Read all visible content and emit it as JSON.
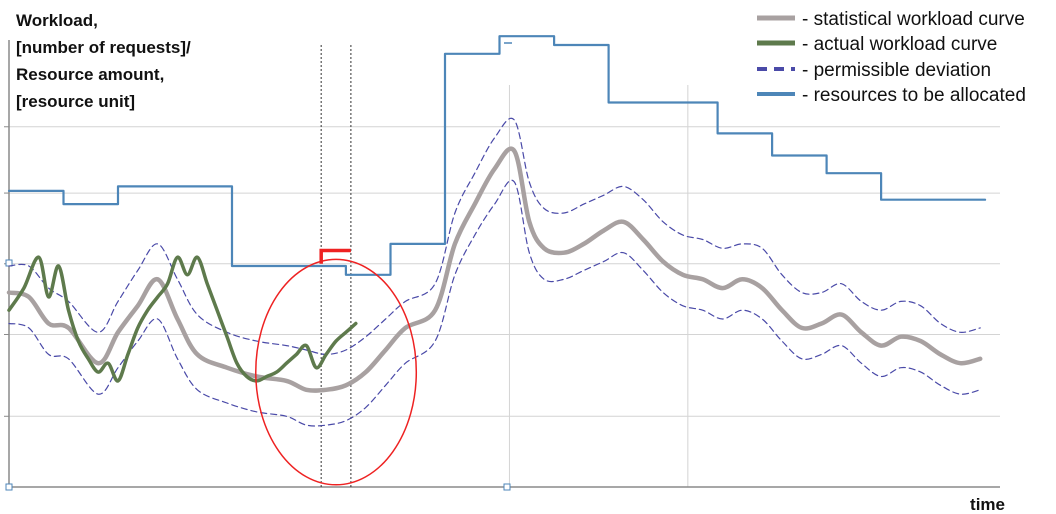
{
  "chart_data": {
    "type": "line",
    "ylabel_lines": [
      "Workload,",
      "[number of requests]/",
      "Resource amount,",
      "[resource unit]"
    ],
    "xlabel": "time",
    "legend": [
      {
        "text": "- statistical workload curve",
        "color": "#a8a1a1",
        "style": "solid-thick"
      },
      {
        "text": "- actual workload curve",
        "color": "#5e7a4c",
        "style": "solid-thick"
      },
      {
        "text": "- permissible deviation",
        "color": "#4a4aa8",
        "style": "dashed"
      },
      {
        "text": "- resources to be allocated",
        "color": "#4d86b8",
        "style": "solid"
      }
    ],
    "legend_position": "top-right",
    "x_range": [
      0,
      100
    ],
    "y_range": [
      0,
      100
    ],
    "grid": {
      "horizontal": [
        16,
        34.5,
        50.5,
        66.5,
        81.5
      ],
      "vertical": [
        50.5,
        68.5
      ]
    },
    "series": [
      {
        "key": "statistical",
        "color": "#a8a1a1",
        "x": [
          0,
          2,
          4,
          6,
          9,
          11,
          13,
          15,
          17,
          19,
          22,
          25,
          28,
          30,
          32,
          34,
          36,
          38,
          40,
          43,
          45,
          47,
          49,
          51,
          52.5,
          54,
          56,
          58,
          60,
          62,
          64,
          66,
          68,
          70,
          72,
          74,
          76,
          78,
          80,
          82,
          84,
          86,
          88,
          90,
          92,
          94,
          96,
          98
        ],
        "y": [
          44,
          43,
          37,
          36,
          28,
          35,
          41,
          47,
          38,
          30,
          27,
          25,
          24,
          22,
          22,
          23,
          26,
          31,
          36,
          40,
          55,
          64,
          72,
          76,
          60,
          54,
          53,
          55,
          58,
          60,
          56,
          51,
          48,
          47,
          45,
          47,
          45,
          40,
          36,
          37,
          39,
          35,
          32,
          34,
          33,
          30,
          28,
          29
        ]
      },
      {
        "key": "actual",
        "color": "#5e7a4c",
        "x": [
          0,
          1.5,
          3,
          4,
          5,
          6,
          7,
          8,
          9,
          10,
          11,
          12,
          13,
          14,
          15,
          16,
          17,
          18,
          19,
          20,
          21,
          22,
          23,
          24,
          25,
          26,
          27,
          28,
          29,
          30,
          31,
          32,
          33,
          34,
          35
        ],
        "y": [
          40,
          45,
          52,
          43,
          50,
          40,
          33,
          29,
          26,
          28,
          24,
          30,
          36,
          40,
          43,
          46,
          52,
          48,
          52,
          46,
          40,
          34,
          28,
          25,
          24,
          25,
          26,
          28,
          30,
          32,
          27,
          30,
          33,
          35,
          37
        ]
      },
      {
        "key": "deviation-upper",
        "color": "#4a4aa8",
        "x": [
          0,
          2,
          4,
          6,
          9,
          11,
          13,
          15,
          17,
          19,
          22,
          25,
          28,
          30,
          32,
          34,
          36,
          38,
          40,
          43,
          45,
          47,
          49,
          51,
          52.5,
          54,
          56,
          58,
          60,
          62,
          64,
          66,
          68,
          70,
          72,
          74,
          76,
          78,
          80,
          82,
          84,
          86,
          88,
          90,
          92,
          94,
          96,
          98
        ],
        "y": [
          50,
          50,
          45,
          42,
          35,
          42,
          49,
          55,
          47,
          39,
          35,
          33,
          32,
          31,
          30,
          31,
          34,
          38,
          42,
          46,
          62,
          71,
          79,
          83,
          69,
          63,
          62,
          64,
          66,
          68,
          65,
          60,
          57,
          56,
          54,
          55,
          54,
          48,
          44,
          44,
          46,
          42,
          40,
          42,
          41,
          37,
          35,
          36
        ]
      },
      {
        "key": "deviation-lower",
        "color": "#4a4aa8",
        "x": [
          0,
          2,
          4,
          6,
          9,
          11,
          13,
          15,
          17,
          19,
          22,
          25,
          28,
          30,
          32,
          34,
          36,
          38,
          40,
          43,
          45,
          47,
          49,
          51,
          52.5,
          54,
          56,
          58,
          60,
          62,
          64,
          66,
          68,
          70,
          72,
          74,
          76,
          78,
          80,
          82,
          84,
          86,
          88,
          90,
          92,
          94,
          96,
          98
        ],
        "y": [
          37,
          36,
          30,
          29,
          21,
          27,
          33,
          38,
          29,
          22,
          19,
          17,
          16,
          14,
          14,
          15,
          18,
          23,
          28,
          33,
          48,
          57,
          64,
          69,
          53,
          47,
          47,
          49,
          51,
          53,
          49,
          44,
          41,
          40,
          38,
          40,
          38,
          33,
          29,
          30,
          32,
          28,
          25,
          27,
          26,
          23,
          21,
          22
        ]
      },
      {
        "key": "resources",
        "color": "#4d86b8",
        "step": true,
        "x": [
          0,
          5.5,
          11,
          22.5,
          34,
          38.5,
          44,
          49.5,
          55,
          60.5,
          71.5,
          77,
          82.5,
          88,
          98.5
        ],
        "y": [
          67,
          64,
          68,
          50,
          48,
          55,
          98,
          102,
          100,
          87,
          80,
          75,
          71,
          65,
          65
        ]
      }
    ],
    "annotations": {
      "dotted_vertical_x": [
        31.5,
        34.5
      ],
      "highlight_step": {
        "color": "#ee2222",
        "x": [
          31.5,
          31.5,
          34.5
        ],
        "y": [
          50.5,
          53.5,
          53.5
        ]
      },
      "circle": {
        "color": "#ee2222",
        "cx": 33,
        "cy": 26,
        "rx": 8.1,
        "ry": 25.5
      }
    }
  }
}
